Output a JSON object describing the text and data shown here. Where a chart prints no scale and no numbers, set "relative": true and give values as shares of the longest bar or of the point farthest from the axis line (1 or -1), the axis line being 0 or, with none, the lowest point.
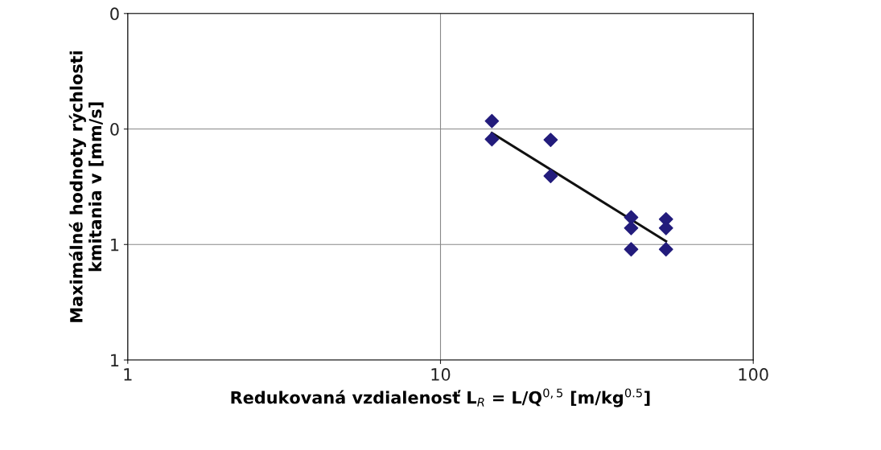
{
  "chart_data": {
    "type": "scatter",
    "xlabel": "Redukovaná vzdialenosť L$_{R}$ = L/Q$^{0,5}$ [m/kg$^{0.5}$]",
    "ylabel": "Maximálné hodnoty rýchlosti\nkmitania v [mm/s]",
    "log": "x",
    "xlim": [
      1,
      100
    ],
    "xticks": [
      1,
      10,
      100
    ],
    "relative": true,
    "annotations": [
      "0",
      "0",
      "1",
      "1"
    ],
    "grid": true,
    "marker": "diamond",
    "series": [
      {
        "color": "#231c7c",
        "x": [
          14.6,
          14.6,
          22.5,
          22.5,
          40.7,
          40.7,
          40.7,
          52.6,
          52.6,
          52.6
        ],
        "values": [
          1.0,
          0.924,
          0.921,
          0.77,
          0.597,
          0.552,
          0.463,
          0.589,
          0.552,
          0.463
        ]
      },
      {
        "type": "line",
        "color": "#111111",
        "marker": "none",
        "x": [
          14.6,
          52.6
        ],
        "values": [
          0.95,
          0.497
        ]
      }
    ]
  }
}
